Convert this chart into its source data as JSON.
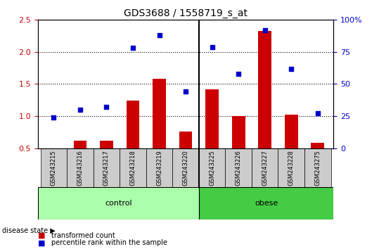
{
  "title": "GDS3688 / 1558719_s_at",
  "samples": [
    "GSM243215",
    "GSM243216",
    "GSM243217",
    "GSM243218",
    "GSM243219",
    "GSM243220",
    "GSM243225",
    "GSM243226",
    "GSM243227",
    "GSM243228",
    "GSM243275"
  ],
  "bar_values": [
    0.5,
    0.62,
    0.62,
    1.24,
    1.58,
    0.76,
    1.42,
    1.0,
    2.33,
    1.02,
    0.58
  ],
  "dot_values": [
    24,
    30,
    32,
    78,
    88,
    44,
    79,
    58,
    92,
    62,
    27
  ],
  "bar_color": "#cc0000",
  "dot_color": "#0000cc",
  "ylim_left": [
    0.5,
    2.5
  ],
  "ylim_right": [
    0,
    100
  ],
  "yticks_left": [
    0.5,
    1.0,
    1.5,
    2.0,
    2.5
  ],
  "yticks_right": [
    0,
    25,
    50,
    75,
    100
  ],
  "ytick_labels_right": [
    "0",
    "25",
    "50",
    "75",
    "100%"
  ],
  "hlines": [
    1.0,
    1.5,
    2.0
  ],
  "ctrl_count": 6,
  "obese_count": 5,
  "control_label": "control",
  "obese_label": "obese",
  "disease_state_label": "disease state",
  "legend_bar_label": "transformed count",
  "legend_dot_label": "percentile rank within the sample",
  "bar_width": 0.5,
  "control_color": "#aaffaa",
  "obese_color": "#44cc44",
  "tick_area_color": "#cccccc",
  "background_color": "#ffffff"
}
